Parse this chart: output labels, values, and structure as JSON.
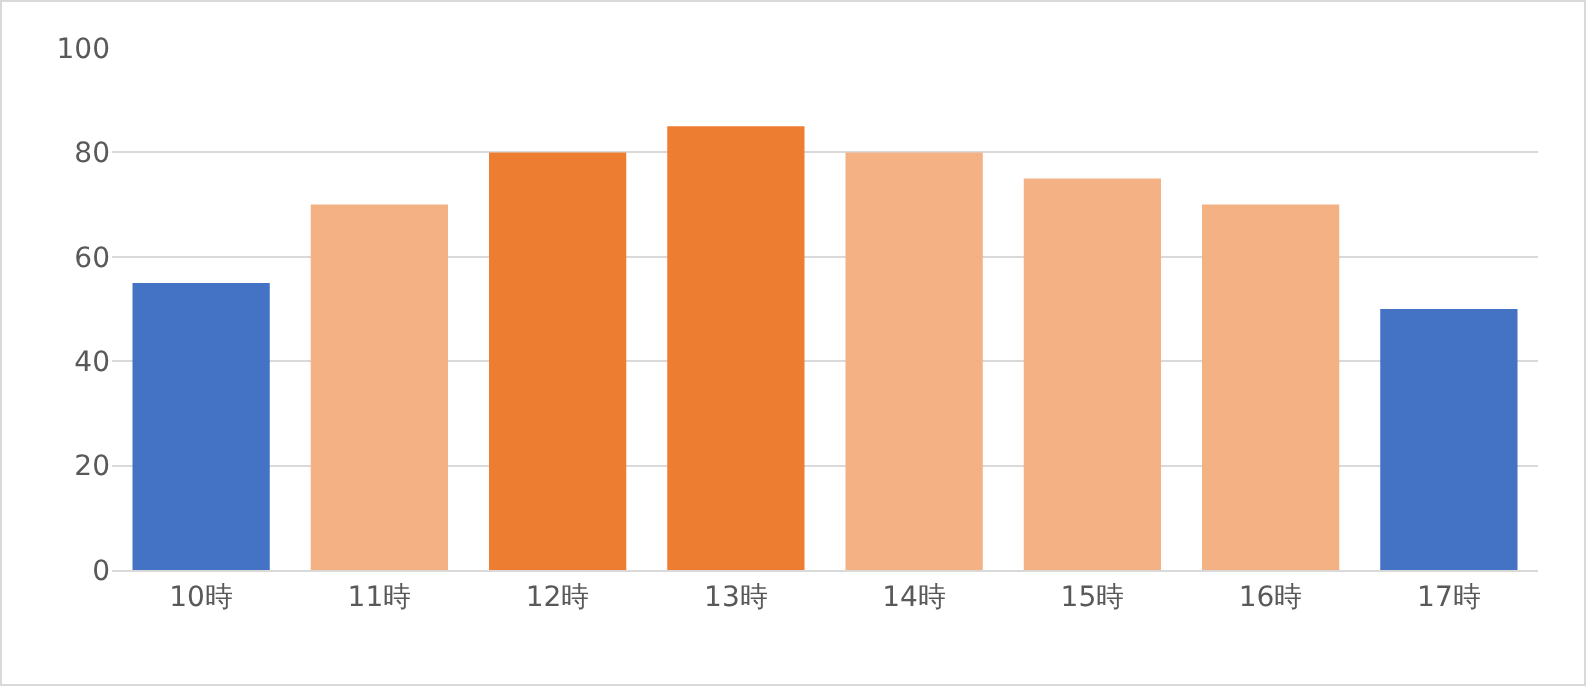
{
  "chart_data": {
    "type": "bar",
    "categories": [
      "10時",
      "11時",
      "12時",
      "13時",
      "14時",
      "15時",
      "16時",
      "17時"
    ],
    "values": [
      55,
      70,
      80,
      85,
      80,
      75,
      70,
      50
    ],
    "colors": [
      "#4472c4",
      "#f4b183",
      "#ed7d31",
      "#ed7d31",
      "#f4b183",
      "#f4b183",
      "#f4b183",
      "#4472c4"
    ],
    "ylim": [
      0,
      100
    ],
    "yticks": [
      0,
      20,
      40,
      60,
      80,
      100
    ],
    "grid": "y"
  }
}
